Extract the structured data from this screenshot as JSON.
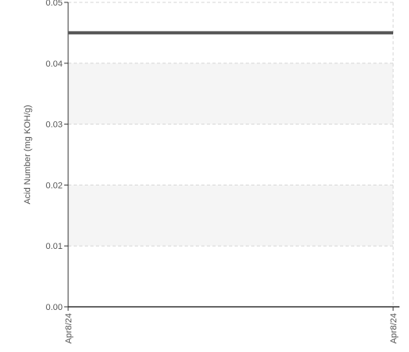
{
  "chart_data": {
    "type": "line",
    "title": "",
    "xlabel": "",
    "ylabel": "Acid Number (mg KOH/g)",
    "x_tick_labels": [
      "Apr8/24",
      "Apr8/24"
    ],
    "y_tick_labels": [
      "0.00",
      "0.01",
      "0.02",
      "0.03",
      "0.04",
      "0.05"
    ],
    "y_ticks": [
      0.0,
      0.01,
      0.02,
      0.03,
      0.04,
      0.05
    ],
    "ylim": [
      0,
      0.05
    ],
    "grid": true,
    "alternating_bands": true,
    "series": [
      {
        "values": [
          0.045,
          0.045
        ],
        "color": "#555555"
      }
    ]
  }
}
